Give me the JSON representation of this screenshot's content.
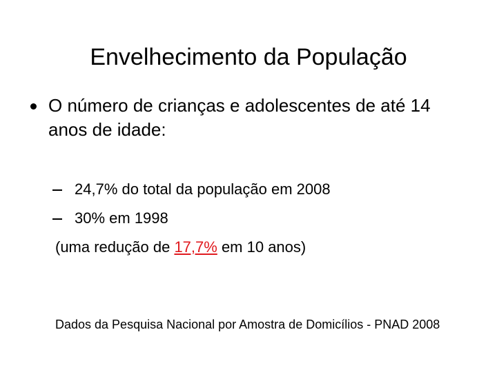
{
  "title": "Envelhecimento da População",
  "bullet": {
    "text": "O número de crianças e adolescentes de até 14 anos de idade:",
    "items": [
      "24,7% do total da população em 2008",
      "30% em 1998"
    ],
    "note": {
      "before": "(uma redução de ",
      "highlight": "17,7%",
      "after": " em 10 anos)"
    }
  },
  "source": "Dados da Pesquisa Nacional por Amostra de Domicílios - PNAD 2008"
}
